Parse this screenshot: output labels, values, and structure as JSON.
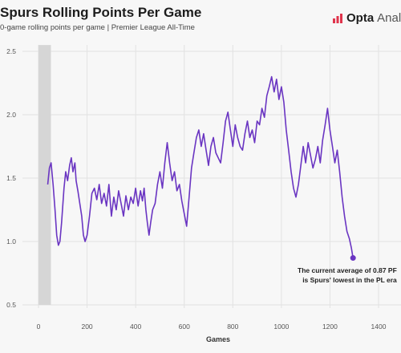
{
  "header": {
    "title": "Spurs Rolling Points Per Game",
    "subtitle": "0-game rolling points per game | Premier League All-Time",
    "brand_name": "Opta",
    "brand_suffix": "Analyst"
  },
  "annotation": {
    "line1": "The current average of 0.87 PF",
    "line2": "is Spurs' lowest in the PL era"
  },
  "colors": {
    "line": "#6a35c2",
    "marker": "#6a35c2",
    "shade": "#d6d6d6",
    "grid": "#e2e2e2"
  },
  "icons": {
    "brand": "opta-logo-icon"
  },
  "chart_data": {
    "type": "line",
    "title": "Spurs Rolling Points Per Game",
    "xlabel": "Games",
    "ylabel": "",
    "xlim": [
      -20,
      1480
    ],
    "ylim": [
      0.5,
      2.55
    ],
    "xticks": [
      0,
      200,
      400,
      600,
      800,
      1000,
      1200,
      1400
    ],
    "yticks": [
      0.5,
      1.0,
      1.5,
      2.0,
      2.5
    ],
    "ytick_labels": [
      "0.5",
      "1.0",
      "1.5",
      "2.0",
      "2.5"
    ],
    "grid": true,
    "shaded_x_range": [
      0,
      38
    ],
    "highlight_point": {
      "x": 1295,
      "y": 0.87
    },
    "series": [
      {
        "x": [
          38,
          45,
          52,
          60,
          68,
          75,
          82,
          88,
          95,
          105,
          112,
          120,
          128,
          135,
          142,
          150,
          155,
          162,
          170,
          178,
          185,
          192,
          200,
          210,
          220,
          230,
          240,
          250,
          260,
          270,
          280,
          290,
          300,
          310,
          320,
          330,
          340,
          350,
          360,
          370,
          380,
          390,
          400,
          410,
          420,
          428,
          435,
          442,
          448,
          455,
          462,
          470,
          480,
          490,
          500,
          510,
          520,
          530,
          540,
          550,
          560,
          570,
          580,
          590,
          600,
          610,
          620,
          630,
          640,
          650,
          660,
          670,
          680,
          690,
          700,
          710,
          720,
          730,
          740,
          750,
          760,
          770,
          780,
          790,
          800,
          810,
          820,
          830,
          840,
          850,
          860,
          870,
          880,
          890,
          900,
          910,
          920,
          930,
          940,
          950,
          960,
          970,
          980,
          990,
          1000,
          1010,
          1020,
          1030,
          1040,
          1050,
          1060,
          1070,
          1080,
          1090,
          1100,
          1110,
          1120,
          1130,
          1140,
          1150,
          1160,
          1170,
          1180,
          1190,
          1200,
          1210,
          1220,
          1230,
          1240,
          1250,
          1260,
          1270,
          1280,
          1288,
          1295
        ],
        "y": [
          1.45,
          1.58,
          1.62,
          1.45,
          1.25,
          1.05,
          0.97,
          1.0,
          1.15,
          1.42,
          1.55,
          1.48,
          1.6,
          1.66,
          1.55,
          1.62,
          1.48,
          1.4,
          1.3,
          1.2,
          1.05,
          1.0,
          1.05,
          1.2,
          1.38,
          1.42,
          1.33,
          1.45,
          1.3,
          1.38,
          1.28,
          1.45,
          1.2,
          1.35,
          1.25,
          1.4,
          1.3,
          1.2,
          1.36,
          1.25,
          1.35,
          1.3,
          1.42,
          1.28,
          1.4,
          1.32,
          1.42,
          1.25,
          1.15,
          1.05,
          1.15,
          1.25,
          1.3,
          1.45,
          1.55,
          1.42,
          1.62,
          1.78,
          1.62,
          1.48,
          1.55,
          1.4,
          1.45,
          1.32,
          1.22,
          1.12,
          1.35,
          1.58,
          1.7,
          1.82,
          1.88,
          1.75,
          1.85,
          1.72,
          1.6,
          1.75,
          1.82,
          1.7,
          1.66,
          1.62,
          1.78,
          1.95,
          2.02,
          1.88,
          1.75,
          1.92,
          1.82,
          1.75,
          1.72,
          1.85,
          1.95,
          1.82,
          1.88,
          1.78,
          1.95,
          1.92,
          2.05,
          1.98,
          2.15,
          2.22,
          2.3,
          2.18,
          2.28,
          2.12,
          2.22,
          2.1,
          1.88,
          1.72,
          1.55,
          1.42,
          1.35,
          1.45,
          1.6,
          1.75,
          1.62,
          1.78,
          1.68,
          1.58,
          1.65,
          1.75,
          1.62,
          1.8,
          1.92,
          2.05,
          1.88,
          1.75,
          1.62,
          1.72,
          1.55,
          1.35,
          1.2,
          1.08,
          1.02,
          0.95,
          0.87
        ]
      }
    ]
  }
}
